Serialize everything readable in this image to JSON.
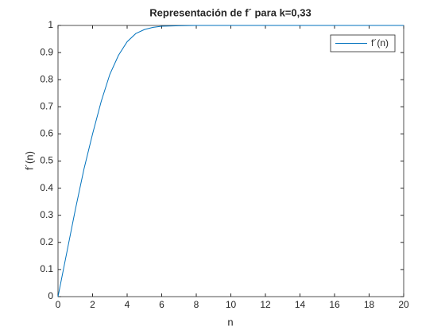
{
  "chart_data": {
    "type": "line",
    "title": "Representación de  f´ para k=0,33",
    "x_label": "n",
    "y_label": "f´(n)",
    "x": [
      0,
      0.5,
      1,
      1.5,
      2,
      2.5,
      3,
      3.5,
      4,
      4.5,
      5,
      5.5,
      6,
      7,
      8,
      10,
      15,
      20
    ],
    "series": [
      {
        "name": "f´(n)",
        "color": "#0072bd",
        "values": [
          0,
          0.16,
          0.32,
          0.47,
          0.6,
          0.72,
          0.82,
          0.89,
          0.94,
          0.97,
          0.985,
          0.993,
          0.997,
          0.999,
          1,
          1,
          1,
          1
        ]
      }
    ],
    "xlim": [
      0,
      20
    ],
    "xticks": [
      0,
      2,
      4,
      6,
      8,
      10,
      12,
      14,
      16,
      18,
      20
    ],
    "ylim": [
      0,
      1
    ],
    "yticks": [
      0,
      0.1,
      0.2,
      0.3,
      0.4,
      0.5,
      0.6,
      0.7,
      0.8,
      0.9,
      1
    ],
    "legend": "northeast"
  }
}
